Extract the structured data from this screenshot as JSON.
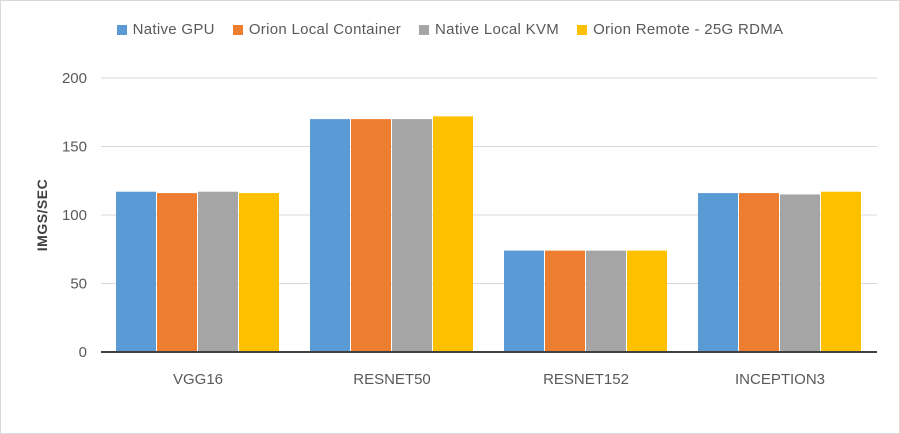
{
  "chart_data": {
    "type": "bar",
    "title": "",
    "xlabel": "",
    "ylabel": "IMGS/SEC",
    "ylim": [
      0,
      200
    ],
    "yticks": [
      0,
      50,
      100,
      150,
      200
    ],
    "grid": true,
    "legend_position": "top",
    "categories": [
      "VGG16",
      "RESNET50",
      "RESNET152",
      "INCEPTION3"
    ],
    "series": [
      {
        "name": "Native GPU",
        "color": "#5b9bd5",
        "values": [
          117,
          170,
          74,
          116
        ]
      },
      {
        "name": "Orion Local Container",
        "color": "#ed7d31",
        "values": [
          116,
          170,
          74,
          116
        ]
      },
      {
        "name": "Native Local KVM",
        "color": "#a5a5a5",
        "values": [
          117,
          170,
          74,
          115
        ]
      },
      {
        "name": "Orion Remote - 25G RDMA",
        "color": "#ffc000",
        "values": [
          116,
          172,
          74,
          117
        ]
      }
    ]
  }
}
